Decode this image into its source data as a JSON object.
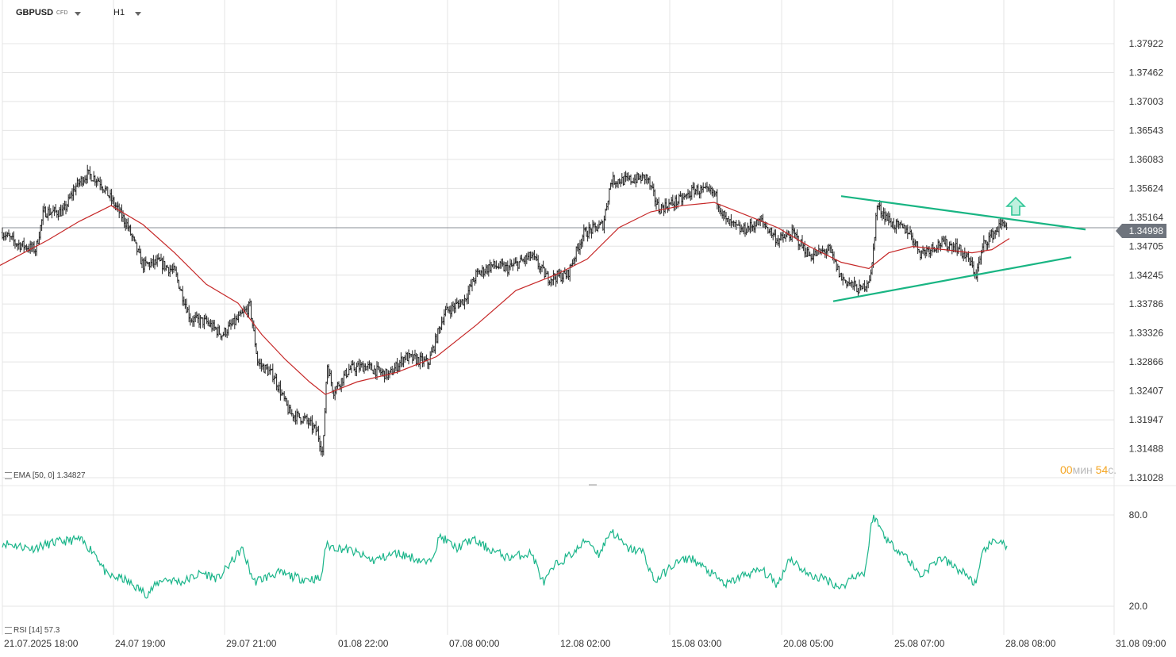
{
  "header": {
    "symbol": "GBPUSD",
    "instrument_type": "CFD",
    "timeframe": "H1"
  },
  "price_axis_labels": [
    "1.37922",
    "1.37462",
    "1.37003",
    "1.36543",
    "1.36083",
    "1.35624",
    "1.35164",
    "1.34705",
    "1.34245",
    "1.33786",
    "1.33326",
    "1.32866",
    "1.32407",
    "1.31947",
    "1.31488",
    "1.31028"
  ],
  "current_price": "1.34998",
  "indicators": {
    "ema_label": "EMA [50, 0] 1.34827",
    "rsi_label": "RSI [14] 57.3"
  },
  "countdown": {
    "minutes": "00",
    "minutes_unit": "мин",
    "seconds": "54",
    "seconds_unit": "с."
  },
  "colors": {
    "candles": "#222222",
    "ema": "#c62828",
    "rsi": "#1ab58a",
    "trendlines": "#19b583",
    "arrow": "#2fc596",
    "grid": "#e4e4e4",
    "price_tag": "#6e747d"
  },
  "chart_data": [
    {
      "type": "ohlc-bars",
      "symbol": "GBPUSD",
      "timeframe": "H1",
      "x_labels": [
        "21.07.2025 18:00",
        "24.07 19:00",
        "29.07 21:00",
        "01.08 22:00",
        "07.08 00:00",
        "12.08 02:00",
        "15.08 03:00",
        "20.08 05:00",
        "25.08 07:00",
        "28.08 08:00",
        "31.08 09:00"
      ],
      "y_ticks": [
        1.37922,
        1.37462,
        1.37003,
        1.36543,
        1.36083,
        1.35624,
        1.35164,
        1.34705,
        1.34245,
        1.33786,
        1.33326,
        1.32866,
        1.32407,
        1.31947,
        1.31488,
        1.31028
      ],
      "ylim": [
        1.31028,
        1.38382
      ],
      "price_path": [
        [
          0,
          1.3495
        ],
        [
          20,
          1.3475
        ],
        [
          45,
          1.3465
        ],
        [
          55,
          1.3525
        ],
        [
          80,
          1.3525
        ],
        [
          95,
          1.3565
        ],
        [
          110,
          1.3585
        ],
        [
          125,
          1.3575
        ],
        [
          140,
          1.3545
        ],
        [
          160,
          1.3505
        ],
        [
          180,
          1.344
        ],
        [
          200,
          1.3445
        ],
        [
          220,
          1.343
        ],
        [
          240,
          1.3355
        ],
        [
          260,
          1.335
        ],
        [
          280,
          1.333
        ],
        [
          300,
          1.3355
        ],
        [
          315,
          1.3375
        ],
        [
          325,
          1.3285
        ],
        [
          345,
          1.3265
        ],
        [
          365,
          1.3205
        ],
        [
          385,
          1.3195
        ],
        [
          400,
          1.3175
        ],
        [
          407,
          1.314
        ],
        [
          412,
          1.3285
        ],
        [
          420,
          1.324
        ],
        [
          440,
          1.3275
        ],
        [
          460,
          1.328
        ],
        [
          490,
          1.3265
        ],
        [
          510,
          1.3295
        ],
        [
          540,
          1.3285
        ],
        [
          560,
          1.3365
        ],
        [
          585,
          1.3385
        ],
        [
          600,
          1.3425
        ],
        [
          620,
          1.344
        ],
        [
          640,
          1.3435
        ],
        [
          670,
          1.3455
        ],
        [
          690,
          1.342
        ],
        [
          715,
          1.3425
        ],
        [
          735,
          1.349
        ],
        [
          760,
          1.3505
        ],
        [
          770,
          1.3575
        ],
        [
          790,
          1.3575
        ],
        [
          815,
          1.358
        ],
        [
          830,
          1.353
        ],
        [
          860,
          1.3545
        ],
        [
          875,
          1.356
        ],
        [
          900,
          1.3555
        ],
        [
          915,
          1.351
        ],
        [
          935,
          1.3495
        ],
        [
          960,
          1.351
        ],
        [
          980,
          1.348
        ],
        [
          1000,
          1.349
        ],
        [
          1020,
          1.3455
        ],
        [
          1045,
          1.3465
        ],
        [
          1060,
          1.342
        ],
        [
          1085,
          1.34
        ],
        [
          1098,
          1.3425
        ],
        [
          1105,
          1.3535
        ],
        [
          1125,
          1.3505
        ],
        [
          1145,
          1.3495
        ],
        [
          1160,
          1.346
        ],
        [
          1185,
          1.3475
        ],
        [
          1205,
          1.347
        ],
        [
          1220,
          1.345
        ],
        [
          1230,
          1.3425
        ],
        [
          1240,
          1.3475
        ],
        [
          1255,
          1.3495
        ],
        [
          1265,
          1.351
        ],
        [
          1270,
          1.3498
        ]
      ],
      "ema_path": [
        [
          0,
          1.344
        ],
        [
          60,
          1.348
        ],
        [
          100,
          1.351
        ],
        [
          140,
          1.3535
        ],
        [
          180,
          1.3505
        ],
        [
          220,
          1.346
        ],
        [
          260,
          1.341
        ],
        [
          300,
          1.338
        ],
        [
          330,
          1.333
        ],
        [
          360,
          1.329
        ],
        [
          390,
          1.3255
        ],
        [
          410,
          1.3235
        ],
        [
          450,
          1.3255
        ],
        [
          500,
          1.327
        ],
        [
          550,
          1.3295
        ],
        [
          600,
          1.3345
        ],
        [
          650,
          1.34
        ],
        [
          700,
          1.3425
        ],
        [
          740,
          1.345
        ],
        [
          780,
          1.35
        ],
        [
          820,
          1.3525
        ],
        [
          860,
          1.3535
        ],
        [
          900,
          1.354
        ],
        [
          940,
          1.352
        ],
        [
          980,
          1.35
        ],
        [
          1020,
          1.347
        ],
        [
          1060,
          1.3445
        ],
        [
          1095,
          1.3435
        ],
        [
          1120,
          1.346
        ],
        [
          1150,
          1.347
        ],
        [
          1190,
          1.3465
        ],
        [
          1225,
          1.346
        ],
        [
          1250,
          1.3465
        ],
        [
          1272,
          1.34827
        ]
      ],
      "trendline_upper": [
        [
          1060,
          1.355
        ],
        [
          1368,
          1.3497
        ]
      ],
      "trendline_lower": [
        [
          1050,
          1.3383
        ],
        [
          1350,
          1.3453
        ]
      ],
      "current_price": 1.34998,
      "ema": {
        "period": 50,
        "shift": 0,
        "value": 1.34827
      }
    },
    {
      "type": "line",
      "name": "RSI [14]",
      "y_ticks": [
        80.0,
        20.0
      ],
      "ylim": [
        17.0,
        83.0
      ],
      "last_value": 57.3,
      "x_y_path": [
        [
          0,
          62
        ],
        [
          40,
          58
        ],
        [
          70,
          62
        ],
        [
          100,
          64
        ],
        [
          120,
          55
        ],
        [
          135,
          40
        ],
        [
          155,
          38
        ],
        [
          185,
          28
        ],
        [
          205,
          38
        ],
        [
          230,
          36
        ],
        [
          255,
          42
        ],
        [
          275,
          38
        ],
        [
          305,
          58
        ],
        [
          320,
          36
        ],
        [
          350,
          42
        ],
        [
          380,
          38
        ],
        [
          405,
          38
        ],
        [
          410,
          60
        ],
        [
          440,
          57
        ],
        [
          470,
          50
        ],
        [
          500,
          55
        ],
        [
          520,
          52
        ],
        [
          540,
          48
        ],
        [
          555,
          66
        ],
        [
          575,
          58
        ],
        [
          595,
          64
        ],
        [
          615,
          58
        ],
        [
          640,
          52
        ],
        [
          670,
          55
        ],
        [
          685,
          35
        ],
        [
          700,
          47
        ],
        [
          725,
          56
        ],
        [
          740,
          64
        ],
        [
          755,
          54
        ],
        [
          770,
          70
        ],
        [
          790,
          58
        ],
        [
          810,
          56
        ],
        [
          825,
          36
        ],
        [
          850,
          48
        ],
        [
          870,
          52
        ],
        [
          890,
          44
        ],
        [
          915,
          34
        ],
        [
          935,
          40
        ],
        [
          960,
          44
        ],
        [
          980,
          34
        ],
        [
          995,
          52
        ],
        [
          1020,
          40
        ],
        [
          1040,
          38
        ],
        [
          1060,
          32
        ],
        [
          1075,
          40
        ],
        [
          1090,
          42
        ],
        [
          1100,
          80
        ],
        [
          1120,
          62
        ],
        [
          1140,
          54
        ],
        [
          1160,
          40
        ],
        [
          1185,
          52
        ],
        [
          1205,
          45
        ],
        [
          1220,
          40
        ],
        [
          1230,
          34
        ],
        [
          1240,
          58
        ],
        [
          1260,
          64
        ],
        [
          1270,
          57.3
        ]
      ]
    }
  ]
}
